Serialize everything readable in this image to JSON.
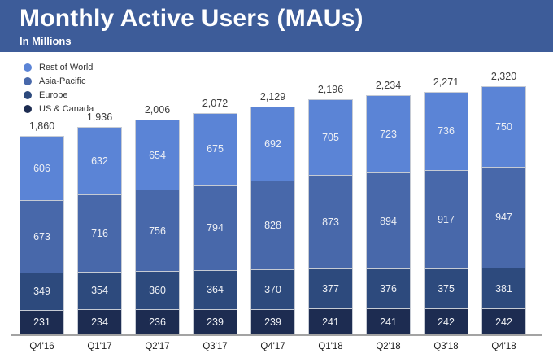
{
  "header": {
    "title": "Monthly Active Users (MAUs)",
    "subtitle": "In Millions",
    "background_color": "#3d5c99"
  },
  "chart_data": {
    "type": "bar",
    "stacked": true,
    "title": "Monthly Active Users (MAUs)",
    "units_note": "In Millions",
    "legend_position": "top-left",
    "grid": false,
    "ylim": [
      0,
      2320
    ],
    "categories": [
      "Q4'16",
      "Q1'17",
      "Q2'17",
      "Q3'17",
      "Q4'17",
      "Q1'18",
      "Q2'18",
      "Q3'18",
      "Q4'18"
    ],
    "series_order": "top-to-bottom-of-stack",
    "series": [
      {
        "name": "Rest of World",
        "color": "#5b84d6",
        "values": [
          606,
          632,
          654,
          675,
          692,
          705,
          723,
          736,
          750
        ]
      },
      {
        "name": "Asia-Pacific",
        "color": "#4868aa",
        "values": [
          673,
          716,
          756,
          794,
          828,
          873,
          894,
          917,
          947
        ]
      },
      {
        "name": "Europe",
        "color": "#2d4a7d",
        "values": [
          349,
          354,
          360,
          364,
          370,
          377,
          376,
          375,
          381
        ]
      },
      {
        "name": "US & Canada",
        "color": "#1d2c51",
        "values": [
          231,
          234,
          236,
          239,
          239,
          241,
          241,
          242,
          242
        ]
      }
    ],
    "totals": [
      "1,860",
      "1,936",
      "2,006",
      "2,072",
      "2,129",
      "2,196",
      "2,234",
      "2,271",
      "2,320"
    ],
    "axis_line_color": "#a3a3a3"
  }
}
